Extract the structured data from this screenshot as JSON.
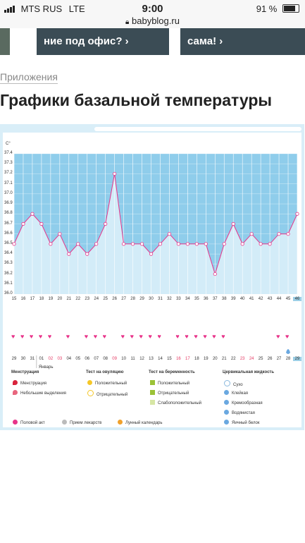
{
  "status_bar": {
    "carrier": "MTS RUS",
    "network": "LTE",
    "time": "9:00",
    "url": "babyblog.ru",
    "battery": "91 %",
    "battery_level": 0.91
  },
  "banners": [
    {
      "text": "ние под офис? ›"
    },
    {
      "text": "сама! ›"
    }
  ],
  "section_label": "Приложения",
  "page_title": "Графики базальной температуры",
  "chart_data": {
    "type": "line",
    "ylabel": "C°",
    "ylim": [
      36.0,
      37.4
    ],
    "y_ticks": [
      "37.4",
      "37.3",
      "37.2",
      "37.1",
      "37.0",
      "36.9",
      "36.8",
      "36.7",
      "36.6",
      "36.5",
      "36.4",
      "36.3",
      "36.2",
      "36.1",
      "36.0"
    ],
    "cycle_days": [
      "15",
      "16",
      "17",
      "18",
      "19",
      "20",
      "21",
      "22",
      "23",
      "24",
      "25",
      "26",
      "27",
      "28",
      "29",
      "30",
      "31",
      "32",
      "33",
      "34",
      "35",
      "36",
      "37",
      "38",
      "39",
      "40",
      "41",
      "42",
      "43",
      "44",
      "45",
      "46"
    ],
    "values": [
      36.5,
      36.7,
      36.8,
      36.7,
      36.5,
      36.6,
      36.4,
      36.5,
      36.4,
      36.5,
      36.7,
      37.2,
      36.5,
      36.5,
      36.5,
      36.4,
      36.5,
      36.6,
      36.5,
      36.5,
      36.5,
      36.5,
      36.2,
      36.5,
      36.7,
      36.5,
      36.6,
      36.5,
      36.5,
      36.6,
      36.6,
      36.8
    ],
    "dates": [
      "29",
      "30",
      "31",
      "01",
      "02",
      "03",
      "04",
      "05",
      "06",
      "07",
      "08",
      "09",
      "10",
      "11",
      "12",
      "13",
      "14",
      "15",
      "16",
      "17",
      "18",
      "19",
      "20",
      "21",
      "22",
      "23",
      "24",
      "25",
      "26",
      "27",
      "28",
      "29"
    ],
    "red_dates": [
      "02",
      "03",
      "09",
      "16",
      "17",
      "23",
      "24"
    ],
    "month_label": "Январь",
    "intercourse_days": [
      0,
      1,
      2,
      3,
      4,
      6,
      8,
      9,
      10,
      12,
      13,
      14,
      15,
      16,
      18,
      19,
      20,
      21,
      22,
      23,
      29,
      30
    ]
  },
  "legend": {
    "menstruation": {
      "title": "Менструация",
      "items": [
        "Менструация",
        "Небольшие выделения"
      ]
    },
    "ovulation_test": {
      "title": "Тест на овуляцию",
      "items": [
        "Положительный",
        "Отрицательный"
      ]
    },
    "pregnancy_test": {
      "title": "Тест на беременность",
      "items": [
        "Положительный",
        "Отрицательный",
        "Слабоположительный"
      ]
    },
    "cervical_fluid": {
      "title": "Цервикальная жидкость",
      "items": [
        "Сухо",
        "Клейкая",
        "Кремообразная",
        "Водянистая",
        "Яичный белок"
      ]
    },
    "bottom": [
      "Половой акт",
      "Прием лекарств",
      "Лунный календарь"
    ]
  }
}
